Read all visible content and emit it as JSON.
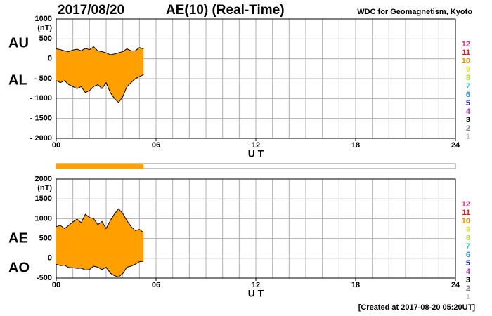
{
  "header": {
    "date": "2017/08/20",
    "title": "AE(10) (Real-Time)",
    "source": "WDC for Geomagnetism, Kyoto"
  },
  "footer": "[Created at 2017-08-20 05:20UT]",
  "color_scale": [
    {
      "label": "12",
      "color": "#e8287c"
    },
    {
      "label": "11",
      "color": "#e0201c"
    },
    {
      "label": "10",
      "color": "#f08c00"
    },
    {
      "label": "9",
      "color": "#f0e020"
    },
    {
      "label": "8",
      "color": "#a8e020"
    },
    {
      "label": "7",
      "color": "#20d0d0"
    },
    {
      "label": "6",
      "color": "#2090e0"
    },
    {
      "label": "5",
      "color": "#2020b0"
    },
    {
      "label": "4",
      "color": "#c020c0"
    },
    {
      "label": "3",
      "color": "#000000"
    },
    {
      "label": "2",
      "color": "#808080"
    },
    {
      "label": "1",
      "color": "#c8c8c8"
    }
  ],
  "chart_data": [
    {
      "type": "area",
      "y_unit": "(nT)",
      "xlabel": "U T",
      "fill": "#ff9f00",
      "grid": true,
      "x": [
        0,
        0.25,
        0.5,
        0.75,
        1,
        1.25,
        1.5,
        1.75,
        2,
        2.25,
        2.5,
        2.75,
        3,
        3.25,
        3.5,
        3.75,
        4,
        4.25,
        4.5,
        4.75,
        5,
        5.25
      ],
      "series": [
        {
          "name": "AU",
          "color": "#000000",
          "values": [
            250,
            230,
            200,
            180,
            220,
            240,
            200,
            260,
            230,
            300,
            200,
            180,
            150,
            100,
            120,
            150,
            180,
            250,
            200,
            200,
            280,
            250
          ]
        },
        {
          "name": "AL",
          "color": "#000000",
          "values": [
            -550,
            -600,
            -550,
            -650,
            -700,
            -750,
            -700,
            -850,
            -800,
            -700,
            -650,
            -750,
            -600,
            -850,
            -1000,
            -1100,
            -950,
            -700,
            -600,
            -500,
            -450,
            -400
          ]
        }
      ],
      "xlim": [
        0,
        24
      ],
      "xticks": [
        {
          "value": 0,
          "label": "00"
        },
        {
          "value": 6,
          "label": "06"
        },
        12,
        18,
        24
      ],
      "ylim": [
        -2000,
        1000
      ],
      "yticks": [
        1000,
        500,
        0,
        {
          "value": -500,
          "label": "- 500"
        },
        {
          "value": -1000,
          "label": "- 1000"
        },
        {
          "value": -1500,
          "label": "- 1500"
        },
        {
          "value": -2000,
          "label": "- 2000"
        }
      ]
    },
    {
      "type": "area",
      "y_unit": "(nT)",
      "xlabel": "U T",
      "fill": "#ff9f00",
      "grid": true,
      "x": [
        0,
        0.25,
        0.5,
        0.75,
        1,
        1.25,
        1.5,
        1.75,
        2,
        2.25,
        2.5,
        2.75,
        3,
        3.25,
        3.5,
        3.75,
        4,
        4.25,
        4.5,
        4.75,
        5,
        5.25
      ],
      "series": [
        {
          "name": "AE",
          "color": "#000000",
          "values": [
            800,
            830,
            750,
            830,
            920,
            990,
            900,
            1110,
            1030,
            1000,
            850,
            930,
            750,
            950,
            1120,
            1250,
            1130,
            950,
            800,
            700,
            730,
            650
          ]
        },
        {
          "name": "AO",
          "color": "#000000",
          "values": [
            -150,
            -185,
            -175,
            -235,
            -240,
            -255,
            -250,
            -295,
            -285,
            -200,
            -225,
            -285,
            -225,
            -375,
            -440,
            -475,
            -385,
            -225,
            -200,
            -150,
            -85,
            -75
          ]
        }
      ],
      "xlim": [
        0,
        24
      ],
      "xticks": [
        {
          "value": 0,
          "label": "00"
        },
        {
          "value": 6,
          "label": "06"
        },
        12,
        18,
        24
      ],
      "ylim": [
        -500,
        2000
      ],
      "yticks": [
        2000,
        1500,
        1000,
        500,
        0,
        -500
      ]
    }
  ]
}
